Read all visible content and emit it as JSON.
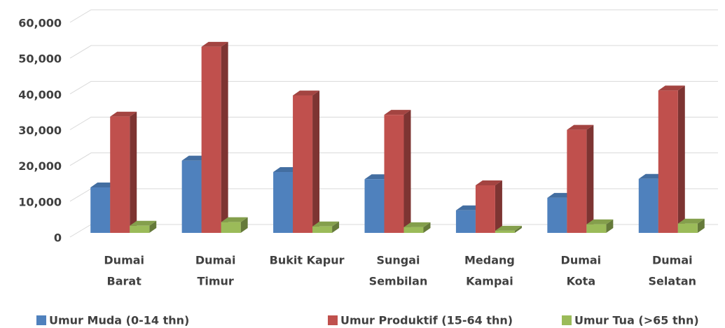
{
  "chart_data": {
    "type": "bar3d",
    "categories": [
      [
        "Dumai",
        "Barat"
      ],
      [
        "Dumai",
        "Timur"
      ],
      [
        "Bukit Kapur"
      ],
      [
        "Sungai",
        "Sembilan"
      ],
      [
        "Medang",
        "Kampai"
      ],
      [
        "Dumai",
        "Kota"
      ],
      [
        "Dumai",
        "Selatan"
      ]
    ],
    "series": [
      {
        "name": "Umur Muda (0-14 thn)",
        "color": "#4f81bd",
        "values": [
          12700,
          20200,
          17000,
          15000,
          6300,
          9800,
          15100
        ]
      },
      {
        "name": "Umur Produktif (15-64 thn)",
        "color": "#c0504d",
        "values": [
          32500,
          52000,
          38400,
          33000,
          13300,
          28800,
          39800
        ]
      },
      {
        "name": "Umur Tua (>65 thn)",
        "color": "#9bbb59",
        "values": [
          2000,
          3000,
          1800,
          1600,
          600,
          2400,
          2600
        ]
      }
    ],
    "ylim": [
      0,
      60000
    ],
    "yticks": [
      {
        "value": 0,
        "label": "0"
      },
      {
        "value": 10000,
        "label": "10,000"
      },
      {
        "value": 20000,
        "label": "20,000"
      },
      {
        "value": 30000,
        "label": "30,000"
      },
      {
        "value": 40000,
        "label": "40,000"
      },
      {
        "value": 50000,
        "label": "50,000"
      },
      {
        "value": 60000,
        "label": "60,000"
      }
    ],
    "grid": true,
    "legend": "bottom"
  }
}
